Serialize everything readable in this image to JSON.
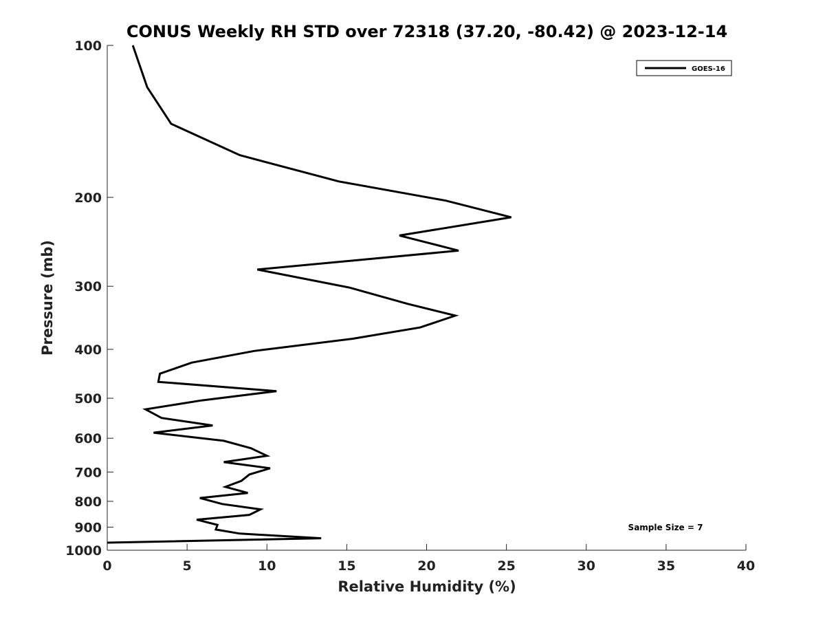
{
  "chart_data": {
    "type": "line",
    "title": "CONUS Weekly RH STD over 72318 (37.20, -80.42) @ 2023-12-14",
    "xlabel": "Relative Humidity (%)",
    "ylabel": "Pressure (mb)",
    "xlim": [
      0,
      40
    ],
    "ylim": [
      100,
      1000
    ],
    "y_scale": "log",
    "y_reversed": true,
    "x_ticks": [
      0,
      5,
      10,
      15,
      20,
      25,
      30,
      35,
      40
    ],
    "y_ticks": [
      100,
      200,
      300,
      400,
      500,
      600,
      700,
      800,
      900,
      1000
    ],
    "grid": false,
    "legend_position": "top-right",
    "annotation": "Sample Size = 7",
    "line_color": "#000000",
    "series": [
      {
        "name": "GOES-16",
        "points": [
          [
            1.6,
            100
          ],
          [
            2.5,
            121
          ],
          [
            4.0,
            143
          ],
          [
            8.3,
            165
          ],
          [
            14.5,
            186
          ],
          [
            21.2,
            203
          ],
          [
            25.3,
            219
          ],
          [
            18.3,
            238
          ],
          [
            22.0,
            255
          ],
          [
            9.4,
            278
          ],
          [
            15.2,
            302
          ],
          [
            18.8,
            325
          ],
          [
            21.8,
            343
          ],
          [
            19.6,
            362
          ],
          [
            15.4,
            381
          ],
          [
            9.2,
            403
          ],
          [
            5.3,
            425
          ],
          [
            3.3,
            447
          ],
          [
            3.2,
            464
          ],
          [
            10.6,
            484
          ],
          [
            5.9,
            505
          ],
          [
            2.4,
            526
          ],
          [
            3.4,
            547
          ],
          [
            6.6,
            566
          ],
          [
            2.9,
            585
          ],
          [
            7.3,
            607
          ],
          [
            9.0,
            628
          ],
          [
            10.0,
            650
          ],
          [
            7.3,
            669
          ],
          [
            10.2,
            688
          ],
          [
            8.9,
            708
          ],
          [
            8.4,
            729
          ],
          [
            7.4,
            749
          ],
          [
            8.8,
            770
          ],
          [
            5.8,
            788
          ],
          [
            7.2,
            810
          ],
          [
            9.6,
            830
          ],
          [
            8.9,
            851
          ],
          [
            5.6,
            870
          ],
          [
            6.9,
            891
          ],
          [
            6.8,
            910
          ],
          [
            8.3,
            927
          ],
          [
            13.4,
            947
          ],
          [
            0.0,
            966
          ]
        ]
      }
    ]
  }
}
